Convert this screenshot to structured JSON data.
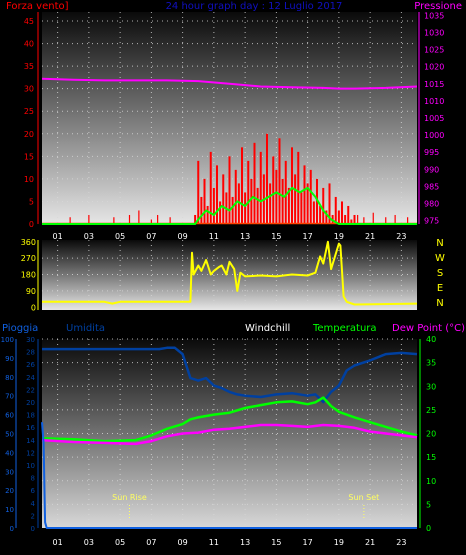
{
  "header": {
    "left_label": "Forza vento]",
    "title": "24 hour graph day : 12 Luglio 2017",
    "right_label": "Pressione"
  },
  "colors": {
    "bg": "#000000",
    "wind_axis": "#ff0000",
    "title": "#1010c0",
    "pressure": "#ff00ff",
    "direction": "#ffff00",
    "rain": "#1060e0",
    "humidity": "#0040a0",
    "windchill": "#ffffff",
    "temperature": "#00ff00",
    "dewpoint": "#ff00ff",
    "gust": "#ff0000",
    "wind_avg": "#00ff00",
    "grid": "#d8d8d8"
  },
  "x_ticks": [
    "01",
    "03",
    "05",
    "07",
    "09",
    "11",
    "13",
    "15",
    "17",
    "19",
    "21",
    "23"
  ],
  "chart_data": [
    {
      "type": "line",
      "name": "wind-pressure",
      "x_range": [
        0,
        24
      ],
      "y_left": {
        "label": "Forza vento]",
        "ticks": [
          0,
          5,
          10,
          15,
          20,
          25,
          30,
          35,
          40,
          45
        ],
        "range": [
          0,
          47
        ]
      },
      "y_right": {
        "label": "Pressione",
        "ticks": [
          975,
          980,
          985,
          990,
          995,
          1000,
          1005,
          1010,
          1015,
          1020,
          1025,
          1030,
          1035
        ],
        "range": [
          974,
          1036
        ]
      },
      "series": [
        {
          "role": "pressure",
          "axis": "right",
          "x": [
            0,
            2,
            4,
            6,
            8,
            10,
            12,
            14,
            16,
            18,
            19,
            20,
            22,
            24
          ],
          "y": [
            1016.5,
            1016.2,
            1016,
            1016,
            1016,
            1015.8,
            1015,
            1014.2,
            1014,
            1013.8,
            1013.6,
            1013.6,
            1013.8,
            1014.2
          ]
        },
        {
          "role": "wind_avg",
          "axis": "left",
          "x": [
            0,
            9.8,
            10,
            10.5,
            11,
            11.5,
            12,
            12.5,
            13,
            13.5,
            14,
            14.5,
            15,
            15.5,
            16,
            16.5,
            17,
            17.5,
            18,
            18.5,
            19,
            24
          ],
          "y": [
            0,
            0,
            1,
            3,
            2,
            4,
            3,
            5,
            4,
            6,
            5,
            6,
            7,
            6,
            8,
            7,
            8,
            6,
            3,
            1,
            0,
            0
          ]
        },
        {
          "role": "gust",
          "axis": "left",
          "x": [
            9.8,
            10,
            10.2,
            10.4,
            10.6,
            10.8,
            11,
            11.2,
            11.4,
            11.6,
            11.8,
            12,
            12.2,
            12.4,
            12.6,
            12.8,
            13,
            13.2,
            13.4,
            13.6,
            13.8,
            14,
            14.2,
            14.4,
            14.6,
            14.8,
            15,
            15.2,
            15.4,
            15.6,
            15.8,
            16,
            16.2,
            16.4,
            16.6,
            16.8,
            17,
            17.2,
            17.4,
            17.6,
            17.8,
            18,
            18.2,
            18.4,
            18.6,
            18.8,
            19,
            19.2,
            19.4,
            19.6,
            19.8,
            20
          ],
          "y": [
            2,
            14,
            6,
            10,
            4,
            16,
            8,
            13,
            5,
            11,
            7,
            15,
            6,
            12,
            9,
            17,
            7,
            14,
            10,
            18,
            8,
            16,
            11,
            20,
            9,
            15,
            12,
            19,
            10,
            14,
            8,
            17,
            11,
            16,
            7,
            13,
            9,
            12,
            5,
            10,
            4,
            8,
            3,
            9,
            2,
            6,
            3,
            5,
            2,
            4,
            1,
            2
          ]
        }
      ]
    },
    {
      "type": "line",
      "name": "wind-direction",
      "x_range": [
        0,
        24
      ],
      "y_left": {
        "ticks": [
          0,
          90,
          180,
          270,
          360
        ],
        "range": [
          -15,
          370
        ]
      },
      "y_right": {
        "labels": [
          "N",
          "W",
          "S",
          "E",
          "N"
        ]
      },
      "series": [
        {
          "role": "direction",
          "x": [
            0,
            4,
            4.5,
            5,
            9.5,
            9.6,
            9.7,
            10,
            10.2,
            10.5,
            10.8,
            11,
            11.3,
            11.5,
            11.8,
            12,
            12.3,
            12.5,
            12.7,
            13,
            14,
            15,
            16,
            17,
            17.5,
            17.8,
            18,
            18.3,
            18.5,
            19,
            19.1,
            19.3,
            19.5,
            20,
            24
          ],
          "y": [
            30,
            30,
            20,
            30,
            30,
            300,
            180,
            230,
            200,
            260,
            180,
            200,
            220,
            230,
            180,
            250,
            210,
            90,
            190,
            170,
            175,
            170,
            180,
            175,
            190,
            280,
            240,
            360,
            210,
            350,
            340,
            60,
            30,
            15,
            20
          ]
        }
      ]
    },
    {
      "type": "line",
      "name": "temperature-humidity",
      "labels": {
        "rain": "Pioggia",
        "humidity": "Umidita",
        "windchill": "Windchill",
        "temperature": "Temperatura",
        "dewpoint": "Dew Point (°C)"
      },
      "annotations": [
        {
          "text": "Sun Rise",
          "x": 5.6
        },
        {
          "text": "Sun Set",
          "x": 20.6
        }
      ],
      "x_range": [
        0,
        24
      ],
      "y_rain": {
        "ticks": [
          0,
          10,
          20,
          30,
          40,
          50,
          60,
          70,
          80,
          90,
          100
        ],
        "range": [
          0,
          100
        ]
      },
      "y_humidity": {
        "ticks": [
          0,
          2,
          4,
          6,
          8,
          10,
          12,
          14,
          16,
          18,
          20,
          22,
          24,
          26,
          28,
          30
        ],
        "range": [
          0,
          30
        ]
      },
      "y_temp": {
        "ticks": [
          0,
          5,
          10,
          15,
          20,
          25,
          30,
          35,
          40
        ],
        "range": [
          0,
          40
        ]
      },
      "series": [
        {
          "role": "humidity",
          "x": [
            0,
            7.5,
            8,
            8.5,
            9,
            9.5,
            10,
            10.5,
            11,
            11.5,
            12,
            12.5,
            13,
            14,
            15,
            16,
            17,
            17.5,
            18,
            18.5,
            19,
            19.5,
            20,
            21,
            22,
            23,
            24
          ],
          "y": [
            28.4,
            28.4,
            28.6,
            28.6,
            27.6,
            23.8,
            23.4,
            23.8,
            22.6,
            22.2,
            21.6,
            21.2,
            21,
            20.8,
            21.2,
            21.4,
            21,
            21.2,
            20,
            21.6,
            22.6,
            25,
            25.8,
            26.6,
            27.6,
            27.8,
            27.6
          ]
        },
        {
          "role": "temperature",
          "x": [
            0,
            2,
            4,
            6,
            7,
            8,
            9,
            9.5,
            10,
            11,
            12,
            13,
            14,
            15,
            16,
            17,
            17.5,
            18,
            18.5,
            19,
            20,
            21,
            22,
            23,
            24
          ],
          "y": [
            19,
            18.8,
            18.4,
            18.6,
            19.6,
            21,
            22,
            23,
            23.4,
            24,
            24.4,
            25.4,
            26,
            26.6,
            26.8,
            26.2,
            26.6,
            27.6,
            25.8,
            24.6,
            23.4,
            22.4,
            21.4,
            20.4,
            19.6
          ]
        },
        {
          "role": "dewpoint",
          "x": [
            0,
            2,
            4,
            6,
            7,
            8,
            9,
            10,
            11,
            12,
            13,
            14,
            15,
            16,
            17,
            18,
            19,
            20,
            21,
            22,
            23,
            24
          ],
          "y": [
            18.6,
            18.2,
            18,
            17.8,
            18.4,
            19.4,
            20,
            20.2,
            20.8,
            21,
            21.4,
            21.8,
            21.8,
            21.6,
            21.4,
            21.8,
            21.6,
            21.2,
            20.4,
            20,
            19.6,
            19.2
          ]
        },
        {
          "role": "rain",
          "x": [
            0,
            0.1,
            0.2,
            0.3,
            5,
            24
          ],
          "y": [
            56,
            45,
            3,
            0,
            0,
            0
          ]
        }
      ]
    }
  ]
}
